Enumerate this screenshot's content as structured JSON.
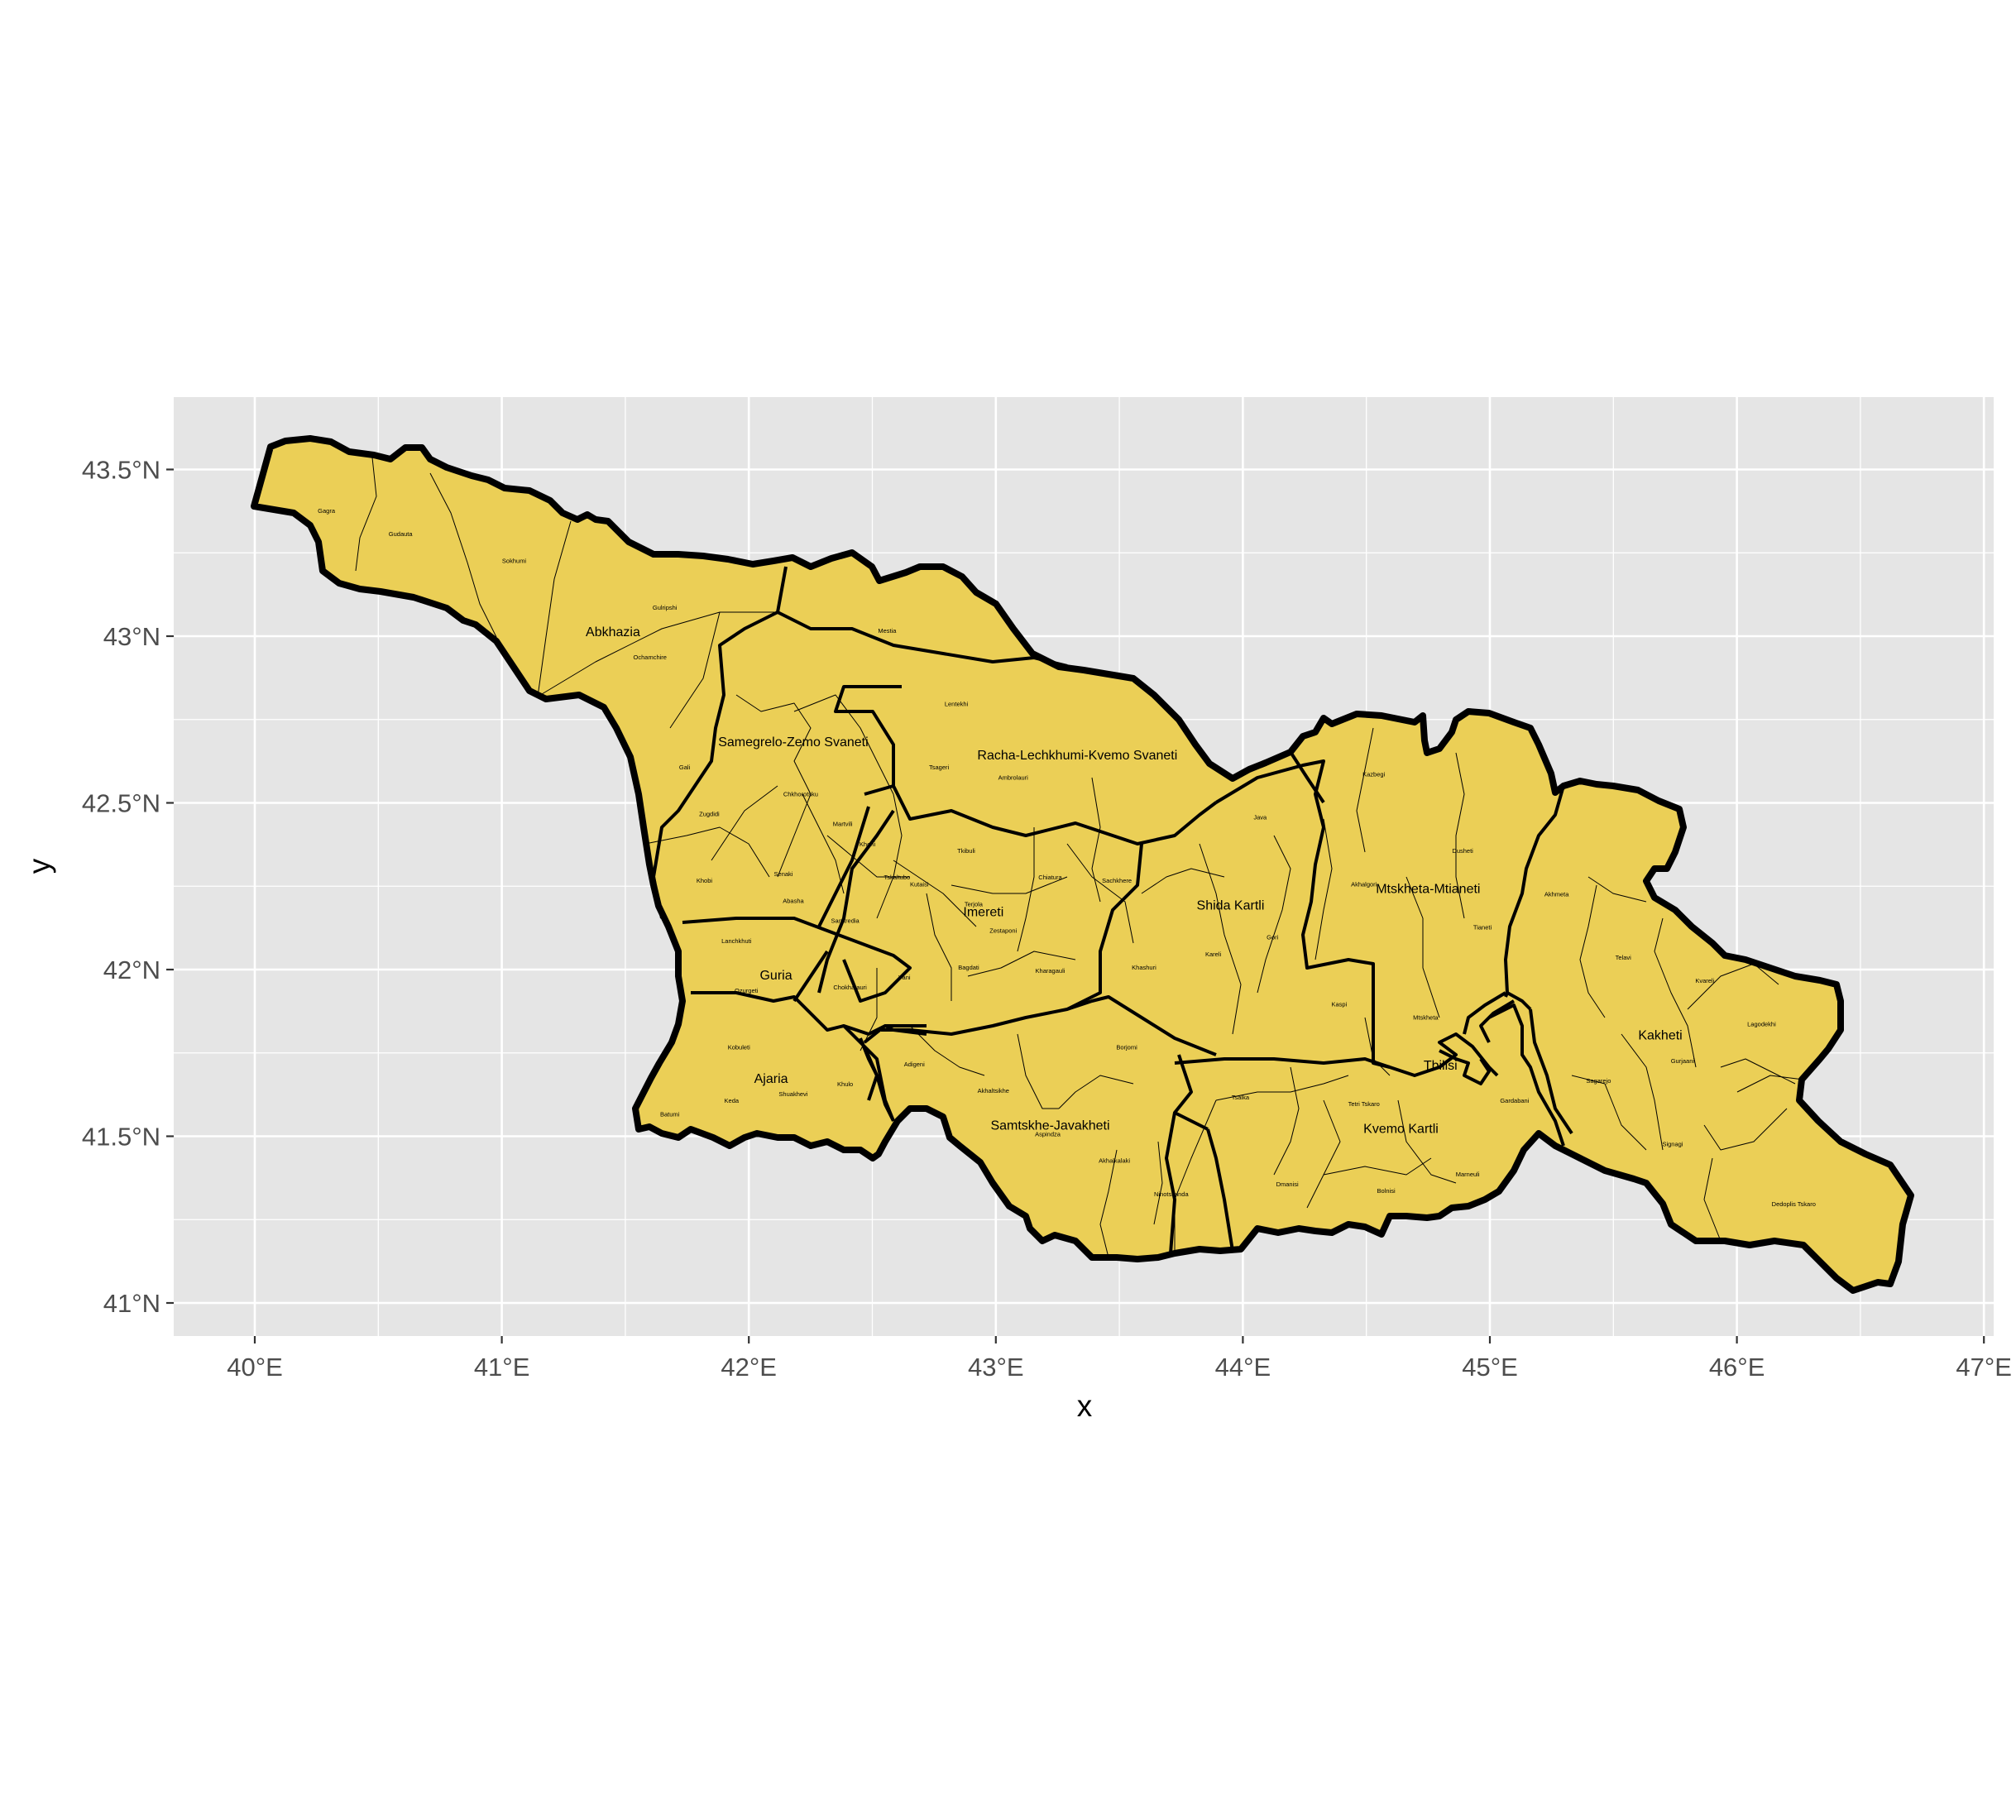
{
  "axes": {
    "x_title": "x",
    "y_title": "y",
    "x_ticks": [
      "40°E",
      "41°E",
      "42°E",
      "43°E",
      "44°E",
      "45°E",
      "46°E",
      "47°E"
    ],
    "y_ticks": [
      "41°N",
      "41.5°N",
      "42°N",
      "42.5°N",
      "43°N",
      "43.5°N"
    ]
  },
  "colors": {
    "panel_background": "#e5e5e5",
    "grid": "#ffffff",
    "fill": "#ebcf56",
    "border": "#000000"
  },
  "region_labels": [
    {
      "name": "Abkhazia",
      "lon": 41.45,
      "lat": 43.0
    },
    {
      "name": "Samegrelo-Zemo Svaneti",
      "lon": 42.18,
      "lat": 42.67
    },
    {
      "name": "Racha-Lechkhumi-Kvemo Svaneti",
      "lon": 43.33,
      "lat": 42.63
    },
    {
      "name": "Imereti",
      "lon": 42.95,
      "lat": 42.16
    },
    {
      "name": "Guria",
      "lon": 42.11,
      "lat": 41.97
    },
    {
      "name": "Ajaria",
      "lon": 42.09,
      "lat": 41.66
    },
    {
      "name": "Samtskhe-Javakheti",
      "lon": 43.22,
      "lat": 41.52
    },
    {
      "name": "Shida Kartli",
      "lon": 43.95,
      "lat": 42.18
    },
    {
      "name": "Mtskheta-Mtianeti",
      "lon": 44.75,
      "lat": 42.23
    },
    {
      "name": "Kakheti",
      "lon": 45.69,
      "lat": 41.79
    },
    {
      "name": "Kvemo Kartli",
      "lon": 44.64,
      "lat": 41.51
    },
    {
      "name": "Tbilisi",
      "lon": 44.8,
      "lat": 41.7
    }
  ],
  "district_labels": [
    {
      "name": "Gagra",
      "lon": 40.29,
      "lat": 43.37
    },
    {
      "name": "Gudauta",
      "lon": 40.59,
      "lat": 43.3
    },
    {
      "name": "Sokhumi",
      "lon": 41.05,
      "lat": 43.22
    },
    {
      "name": "Gulripshi",
      "lon": 41.66,
      "lat": 43.08
    },
    {
      "name": "Ochamchire",
      "lon": 41.6,
      "lat": 42.93
    },
    {
      "name": "Gali",
      "lon": 41.74,
      "lat": 42.6
    },
    {
      "name": "Mestia",
      "lon": 42.56,
      "lat": 43.01
    },
    {
      "name": "Lentekhi",
      "lon": 42.84,
      "lat": 42.79
    },
    {
      "name": "Tsageri",
      "lon": 42.77,
      "lat": 42.6
    },
    {
      "name": "Ambrolauri",
      "lon": 43.07,
      "lat": 42.57
    },
    {
      "name": "Chkhorotsku",
      "lon": 42.21,
      "lat": 42.52
    },
    {
      "name": "Martvili",
      "lon": 42.38,
      "lat": 42.43
    },
    {
      "name": "Zugdidi",
      "lon": 41.84,
      "lat": 42.46
    },
    {
      "name": "Khobi",
      "lon": 41.82,
      "lat": 42.26
    },
    {
      "name": "Senaki",
      "lon": 42.14,
      "lat": 42.28
    },
    {
      "name": "Abasha",
      "lon": 42.18,
      "lat": 42.2
    },
    {
      "name": "Khoni",
      "lon": 42.48,
      "lat": 42.37
    },
    {
      "name": "Tkibuli",
      "lon": 42.88,
      "lat": 42.35
    },
    {
      "name": "Tskaltubo",
      "lon": 42.6,
      "lat": 42.27
    },
    {
      "name": "Kutaisi",
      "lon": 42.69,
      "lat": 42.25
    },
    {
      "name": "Terjola",
      "lon": 42.91,
      "lat": 42.19
    },
    {
      "name": "Chiatura",
      "lon": 43.22,
      "lat": 42.27
    },
    {
      "name": "Sachkhere",
      "lon": 43.49,
      "lat": 42.26
    },
    {
      "name": "Zestaponi",
      "lon": 43.03,
      "lat": 42.11
    },
    {
      "name": "Samtredia",
      "lon": 42.39,
      "lat": 42.14
    },
    {
      "name": "Lanchkhuti",
      "lon": 41.95,
      "lat": 42.08
    },
    {
      "name": "Ozurgeti",
      "lon": 41.99,
      "lat": 41.93
    },
    {
      "name": "Chokhatauri",
      "lon": 42.41,
      "lat": 41.94
    },
    {
      "name": "Vani",
      "lon": 42.63,
      "lat": 41.97
    },
    {
      "name": "Bagdati",
      "lon": 42.89,
      "lat": 42.0
    },
    {
      "name": "Kharagauli",
      "lon": 43.22,
      "lat": 41.99
    },
    {
      "name": "Kobuleti",
      "lon": 41.96,
      "lat": 41.76
    },
    {
      "name": "Adigeni",
      "lon": 42.67,
      "lat": 41.71
    },
    {
      "name": "Borjomi",
      "lon": 43.53,
      "lat": 41.76
    },
    {
      "name": "Khulo",
      "lon": 42.39,
      "lat": 41.65
    },
    {
      "name": "Shuakhevi",
      "lon": 42.18,
      "lat": 41.62
    },
    {
      "name": "Keda",
      "lon": 41.93,
      "lat": 41.6
    },
    {
      "name": "Batumi",
      "lon": 41.68,
      "lat": 41.56
    },
    {
      "name": "Akhaltsikhe",
      "lon": 42.99,
      "lat": 41.63
    },
    {
      "name": "Aspindza",
      "lon": 43.21,
      "lat": 41.5
    },
    {
      "name": "Akhalkalaki",
      "lon": 43.48,
      "lat": 41.42
    },
    {
      "name": "Ninotsminda",
      "lon": 43.71,
      "lat": 41.32
    },
    {
      "name": "Khashuri",
      "lon": 43.6,
      "lat": 42.0
    },
    {
      "name": "Kareli",
      "lon": 43.88,
      "lat": 42.04
    },
    {
      "name": "Gori",
      "lon": 44.12,
      "lat": 42.09
    },
    {
      "name": "Java",
      "lon": 44.07,
      "lat": 42.45
    },
    {
      "name": "Kazbegi",
      "lon": 44.53,
      "lat": 42.58
    },
    {
      "name": "Dusheti",
      "lon": 44.89,
      "lat": 42.35
    },
    {
      "name": "Akhalgori",
      "lon": 44.49,
      "lat": 42.25
    },
    {
      "name": "Tianeti",
      "lon": 44.97,
      "lat": 42.12
    },
    {
      "name": "Kaspi",
      "lon": 44.39,
      "lat": 41.89
    },
    {
      "name": "Mtskheta",
      "lon": 44.74,
      "lat": 41.85
    },
    {
      "name": "Akhmeta",
      "lon": 45.27,
      "lat": 42.22
    },
    {
      "name": "Telavi",
      "lon": 45.54,
      "lat": 42.03
    },
    {
      "name": "Kvareli",
      "lon": 45.87,
      "lat": 41.96
    },
    {
      "name": "Lagodekhi",
      "lon": 46.1,
      "lat": 41.83
    },
    {
      "name": "Gurjaani",
      "lon": 45.78,
      "lat": 41.72
    },
    {
      "name": "Sagarejo",
      "lon": 45.44,
      "lat": 41.66
    },
    {
      "name": "Gardabani",
      "lon": 45.1,
      "lat": 41.6
    },
    {
      "name": "Signagi",
      "lon": 45.74,
      "lat": 41.47
    },
    {
      "name": "Dedoplis Tskaro",
      "lon": 46.23,
      "lat": 41.29
    },
    {
      "name": "Tetri Tskaro",
      "lon": 44.49,
      "lat": 41.59
    },
    {
      "name": "Tsalka",
      "lon": 43.99,
      "lat": 41.61
    },
    {
      "name": "Marneuli",
      "lon": 44.91,
      "lat": 41.38
    },
    {
      "name": "Bolnisi",
      "lon": 44.58,
      "lat": 41.33
    },
    {
      "name": "Dmanisi",
      "lon": 44.18,
      "lat": 41.35
    }
  ]
}
